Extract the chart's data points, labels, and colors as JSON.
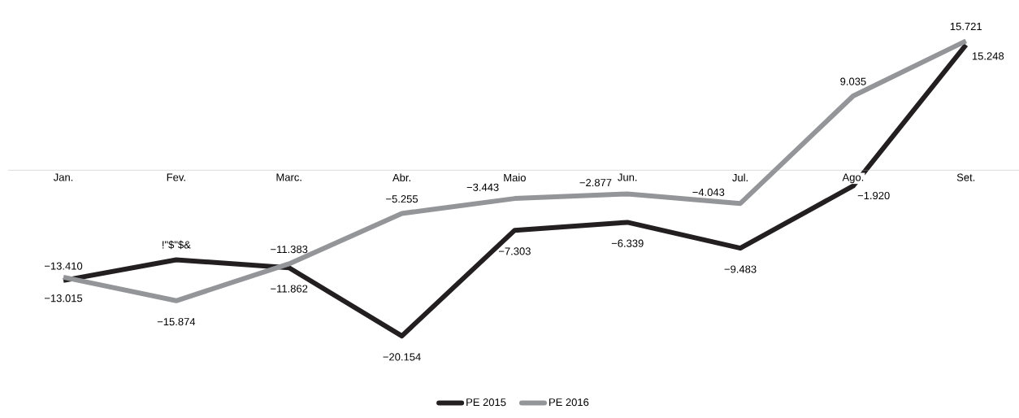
{
  "chart_data": {
    "type": "line",
    "categories": [
      "Jan.",
      "Fev.",
      "Marc.",
      "Abr.",
      "Maio",
      "Jun.",
      "Jul.",
      "Ago.",
      "Set."
    ],
    "legend": "bottom",
    "series": [
      {
        "name": "PE 2015",
        "color": "#231f20",
        "values": [
          -13.41,
          -10.9,
          -11.862,
          -20.154,
          -7.303,
          -6.339,
          -9.483,
          -1.92,
          15.248
        ],
        "value_labels": [
          "−13.410",
          "!\"$\"$&",
          "−11.862",
          "−20.154",
          "−7.303",
          "−6.339",
          "−9.483",
          "−1.920",
          "15.248"
        ]
      },
      {
        "name": "PE 2016",
        "color": "#939598",
        "values": [
          -13.015,
          -15.874,
          -11.383,
          -5.255,
          -3.443,
          -2.877,
          -4.043,
          9.035,
          15.721
        ],
        "value_labels": [
          "−13.015",
          "−15.874",
          "−11.383",
          "−5.255",
          "−3.443",
          "−2.877",
          "−4.043",
          "9.035",
          "15.721"
        ]
      }
    ]
  }
}
